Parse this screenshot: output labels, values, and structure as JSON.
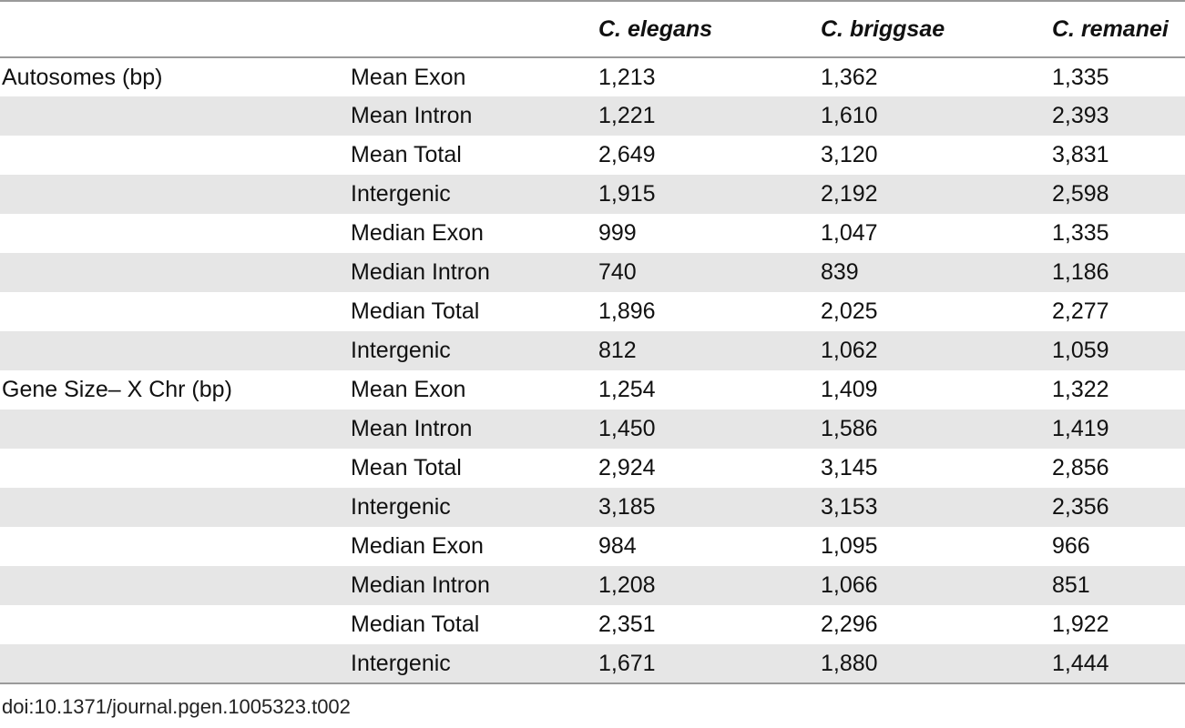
{
  "table": {
    "headers": [
      "",
      "",
      "C. elegans",
      "C. briggsae",
      "C. remanei"
    ],
    "rows": [
      {
        "group": "Autosomes (bp)",
        "metric": "Mean Exon",
        "c_elegans": "1,213",
        "c_briggsae": "1,362",
        "c_remanei": "1,335"
      },
      {
        "group": "",
        "metric": "Mean Intron",
        "c_elegans": "1,221",
        "c_briggsae": "1,610",
        "c_remanei": "2,393"
      },
      {
        "group": "",
        "metric": "Mean Total",
        "c_elegans": "2,649",
        "c_briggsae": "3,120",
        "c_remanei": "3,831"
      },
      {
        "group": "",
        "metric": "Intergenic",
        "c_elegans": "1,915",
        "c_briggsae": "2,192",
        "c_remanei": "2,598"
      },
      {
        "group": "",
        "metric": "Median Exon",
        "c_elegans": "999",
        "c_briggsae": "1,047",
        "c_remanei": "1,335"
      },
      {
        "group": "",
        "metric": "Median Intron",
        "c_elegans": "740",
        "c_briggsae": "839",
        "c_remanei": "1,186"
      },
      {
        "group": "",
        "metric": "Median Total",
        "c_elegans": "1,896",
        "c_briggsae": "2,025",
        "c_remanei": "2,277"
      },
      {
        "group": "",
        "metric": "Intergenic",
        "c_elegans": "812",
        "c_briggsae": "1,062",
        "c_remanei": "1,059"
      },
      {
        "group": "Gene Size– X Chr (bp)",
        "metric": "Mean Exon",
        "c_elegans": "1,254",
        "c_briggsae": "1,409",
        "c_remanei": "1,322"
      },
      {
        "group": "",
        "metric": "Mean Intron",
        "c_elegans": "1,450",
        "c_briggsae": "1,586",
        "c_remanei": "1,419"
      },
      {
        "group": "",
        "metric": "Mean Total",
        "c_elegans": "2,924",
        "c_briggsae": "3,145",
        "c_remanei": "2,856"
      },
      {
        "group": "",
        "metric": "Intergenic",
        "c_elegans": "3,185",
        "c_briggsae": "3,153",
        "c_remanei": "2,356"
      },
      {
        "group": "",
        "metric": "Median Exon",
        "c_elegans": "984",
        "c_briggsae": "1,095",
        "c_remanei": "966"
      },
      {
        "group": "",
        "metric": "Median Intron",
        "c_elegans": "1,208",
        "c_briggsae": "1,066",
        "c_remanei": "851"
      },
      {
        "group": "",
        "metric": "Median Total",
        "c_elegans": "2,351",
        "c_briggsae": "2,296",
        "c_remanei": "1,922"
      },
      {
        "group": "",
        "metric": "Intergenic",
        "c_elegans": "1,671",
        "c_briggsae": "1,880",
        "c_remanei": "1,444"
      }
    ]
  },
  "footer": {
    "doi": "doi:10.1371/journal.pgen.1005323.t002"
  },
  "colors": {
    "shade": "#e6e6e6",
    "rule": "#9a9a9a",
    "text": "#111111"
  }
}
